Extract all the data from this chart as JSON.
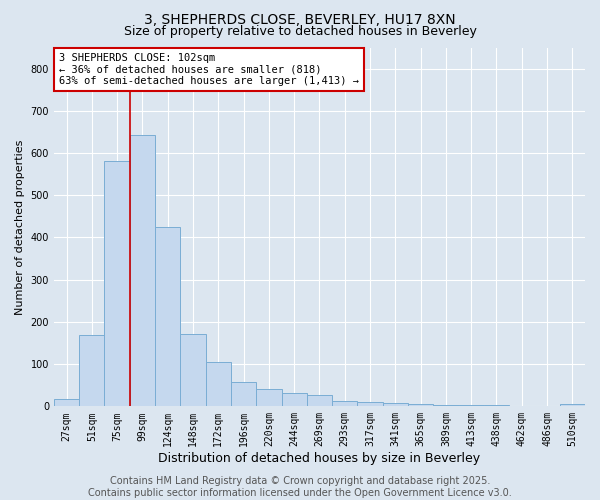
{
  "title1": "3, SHEPHERDS CLOSE, BEVERLEY, HU17 8XN",
  "title2": "Size of property relative to detached houses in Beverley",
  "xlabel": "Distribution of detached houses by size in Beverley",
  "ylabel": "Number of detached properties",
  "categories": [
    "27sqm",
    "51sqm",
    "75sqm",
    "99sqm",
    "124sqm",
    "148sqm",
    "172sqm",
    "196sqm",
    "220sqm",
    "244sqm",
    "269sqm",
    "293sqm",
    "317sqm",
    "341sqm",
    "365sqm",
    "389sqm",
    "413sqm",
    "438sqm",
    "462sqm",
    "486sqm",
    "510sqm"
  ],
  "values": [
    18,
    168,
    580,
    642,
    425,
    172,
    105,
    57,
    42,
    32,
    28,
    13,
    10,
    7,
    6,
    4,
    3,
    2,
    1,
    1,
    5
  ],
  "bar_color": "#c5d8ee",
  "bar_edgecolor": "#7aadd4",
  "ylim": [
    0,
    850
  ],
  "yticks": [
    0,
    100,
    200,
    300,
    400,
    500,
    600,
    700,
    800
  ],
  "annotation_text": "3 SHEPHERDS CLOSE: 102sqm\n← 36% of detached houses are smaller (818)\n63% of semi-detached houses are larger (1,413) →",
  "annotation_box_color": "#ffffff",
  "annotation_box_edgecolor": "#cc0000",
  "vline_x": 2.5,
  "vline_color": "#cc0000",
  "background_color": "#dce6f0",
  "plot_background": "#dce6f0",
  "grid_color": "#ffffff",
  "footer_line1": "Contains HM Land Registry data © Crown copyright and database right 2025.",
  "footer_line2": "Contains public sector information licensed under the Open Government Licence v3.0.",
  "title_fontsize": 10,
  "subtitle_fontsize": 9,
  "annotation_fontsize": 7.5,
  "ylabel_fontsize": 8,
  "xlabel_fontsize": 9,
  "footer_fontsize": 7,
  "tick_fontsize": 7
}
